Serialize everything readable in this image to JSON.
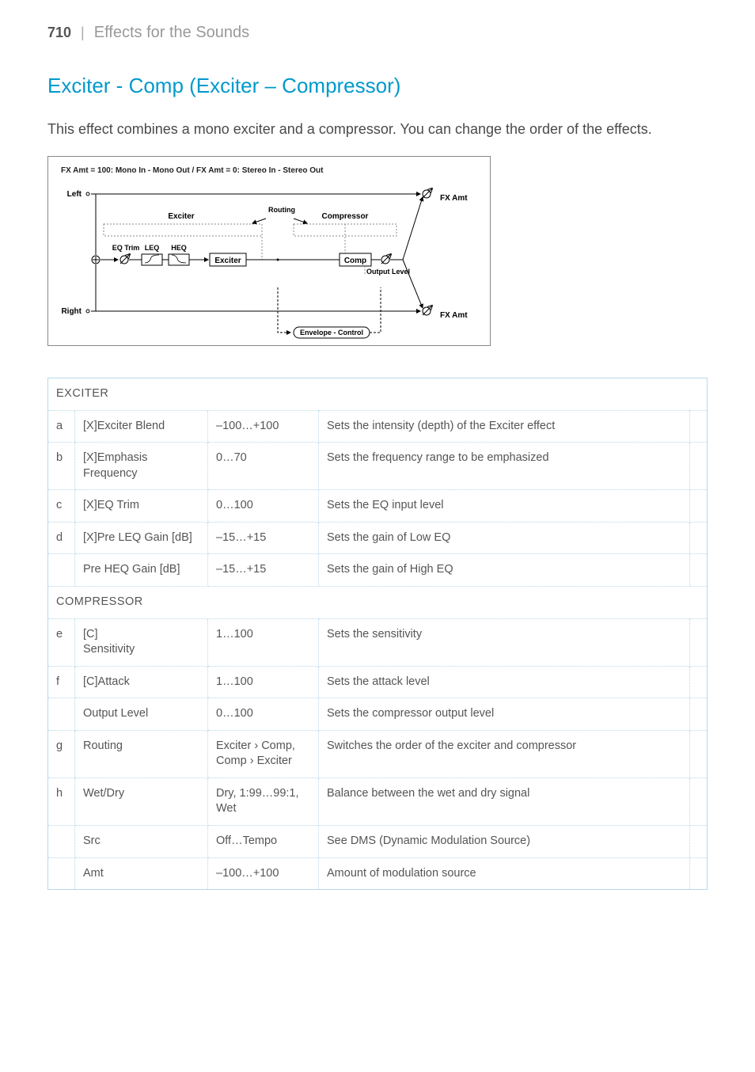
{
  "page": {
    "number": "710",
    "section": "Effects for the Sounds"
  },
  "title": "Exciter - Comp (Exciter – Compressor)",
  "description": "This effect combines a mono exciter and a compressor. You can change the order of the effects.",
  "diagram": {
    "title": "FX Amt = 100: Mono In - Mono Out  /  FX Amt = 0: Stereo In - Stereo Out",
    "labels": {
      "left": "Left",
      "right": "Right",
      "exciter_top": "Exciter",
      "routing": "Routing",
      "compressor_top": "Compressor",
      "eq_trim": "EQ Trim",
      "leq": "LEQ",
      "heq": "HEQ",
      "exciter_box": "Exciter",
      "comp_box": "Comp",
      "output_level": "Output Level",
      "envelope": "Envelope - Control",
      "fx_amt_top": "FX Amt",
      "fx_amt_bot": "FX Amt"
    }
  },
  "table": {
    "sections": [
      {
        "header": "EXCITER",
        "rows": [
          {
            "a": "a",
            "name": "[X]Exciter Blend",
            "range": "–100…+100",
            "desc": "Sets the intensity (depth) of the Exciter effect",
            "e": ""
          },
          {
            "a": "b",
            "name": "[X]Emphasis Frequency",
            "range": "0…70",
            "desc": "Sets the frequency range to be emphasized",
            "e": ""
          },
          {
            "a": "c",
            "name": "[X]EQ Trim",
            "range": "0…100",
            "desc": "Sets the EQ input level",
            "e": ""
          },
          {
            "a": "d",
            "name": "[X]Pre LEQ Gain [dB]",
            "range": "–15…+15",
            "desc": "Sets the gain of Low EQ",
            "e": ""
          },
          {
            "a": "",
            "name": "Pre HEQ Gain [dB]",
            "range": "–15…+15",
            "desc": "Sets the gain of High EQ",
            "e": ""
          }
        ]
      },
      {
        "header": "COMPRESSOR",
        "rows": [
          {
            "a": "e",
            "name": "[C]\nSensitivity",
            "range": "1…100",
            "desc": "Sets the sensitivity",
            "e": ""
          },
          {
            "a": "f",
            "name": "[C]Attack",
            "range": "1…100",
            "desc": "Sets the attack level",
            "e": ""
          },
          {
            "a": "",
            "name": "Output Level",
            "range": "0…100",
            "desc": "Sets the compressor output level",
            "e": ""
          },
          {
            "a": "g",
            "name": "Routing",
            "range": "Exciter › Comp, Comp › Exciter",
            "desc": "Switches the order of the exciter and compressor",
            "e": ""
          },
          {
            "a": "h",
            "name": "Wet/Dry",
            "range": "Dry, 1:99…99:1, Wet",
            "desc": "Balance between the wet and dry signal",
            "e": ""
          },
          {
            "a": "",
            "name": "Src",
            "range": "Off…Tempo",
            "desc": "See DMS (Dynamic Modulation Source)",
            "e": ""
          },
          {
            "a": "",
            "name": "Amt",
            "range": "–100…+100",
            "desc": "Amount of modulation source",
            "e": ""
          }
        ]
      }
    ]
  }
}
